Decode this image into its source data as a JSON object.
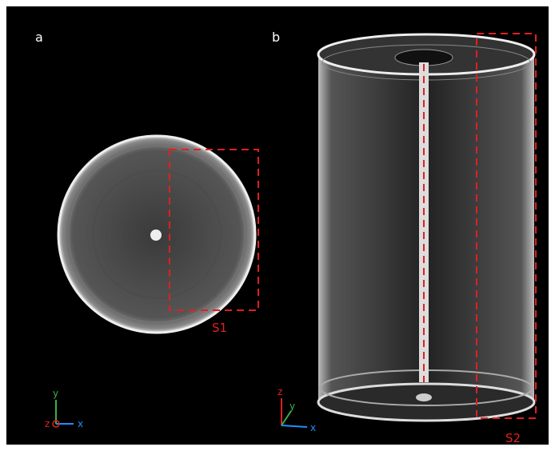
{
  "panels": [
    {
      "label": "a",
      "region": "S1",
      "axes": [
        "z",
        "y",
        "x"
      ]
    },
    {
      "label": "b",
      "region": "S2",
      "axes": [
        "z",
        "y",
        "x"
      ]
    }
  ]
}
